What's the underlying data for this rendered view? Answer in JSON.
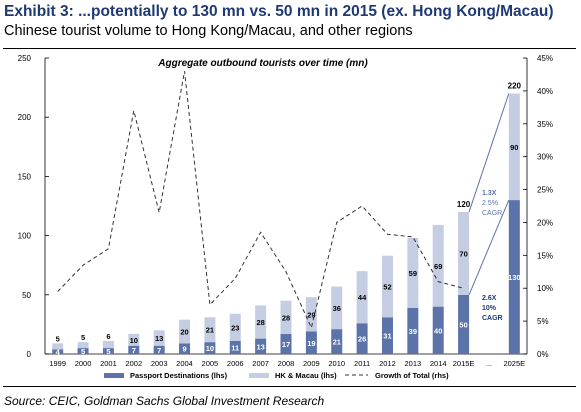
{
  "header": {
    "title": "Exhibit 3: ...potentially to 130 mn vs. 50 mn in 2015 (ex. Hong Kong/Macau)",
    "subtitle": "Chinese tourist volume to Hong Kong/Macau, and other regions"
  },
  "footer": {
    "source": "Source: CEIC, Goldman Sachs Global Investment Research"
  },
  "colors": {
    "passport": "#5b73a8",
    "hk_macau": "#c5cde3",
    "growth_line": "#333333",
    "accent": "#1f3a73",
    "annotation": "#5b73a8"
  },
  "chart_data": {
    "type": "bar",
    "stacked": true,
    "title": "Aggregate outbound tourists over time (mn)",
    "categories": [
      "1999",
      "2000",
      "2001",
      "2002",
      "2003",
      "2004",
      "2005",
      "2006",
      "2007",
      "2008",
      "2009",
      "2010",
      "2011",
      "2012",
      "2013",
      "2014",
      "2015E",
      "...",
      "2025E"
    ],
    "series": [
      {
        "name": "Passport Destinations (lhs)",
        "axis": "left",
        "type": "bar",
        "values": [
          4,
          5,
          5,
          7,
          7,
          9,
          10,
          11,
          13,
          17,
          19,
          21,
          26,
          31,
          39,
          40,
          50,
          null,
          130
        ]
      },
      {
        "name": "HK & Macau (lhs)",
        "axis": "left",
        "type": "bar",
        "values": [
          5,
          5,
          6,
          10,
          13,
          20,
          21,
          23,
          28,
          28,
          29,
          36,
          44,
          52,
          59,
          69,
          70,
          null,
          90
        ]
      },
      {
        "name": "Growth of Total (rhs)",
        "axis": "right",
        "type": "line",
        "style": "dashed",
        "values": [
          9.5,
          13.5,
          16,
          37,
          21.5,
          43,
          7.5,
          11.5,
          18.5,
          12.5,
          4,
          20,
          22.5,
          18.2,
          17.8,
          11,
          10,
          null,
          null
        ]
      }
    ],
    "totals": [
      null,
      null,
      null,
      null,
      null,
      null,
      null,
      null,
      null,
      null,
      null,
      null,
      null,
      null,
      null,
      null,
      120,
      null,
      220
    ],
    "left_axis": {
      "ylim": [
        0,
        250
      ],
      "ticks": [
        0,
        50,
        100,
        150,
        200,
        250
      ]
    },
    "right_axis": {
      "ylim": [
        0,
        45
      ],
      "ticks": [
        "0%",
        "5%",
        "10%",
        "15%",
        "20%",
        "25%",
        "30%",
        "35%",
        "40%",
        "45%"
      ]
    },
    "annotations": [
      {
        "lines": [
          "1.3X",
          "2.5%",
          "CAGR"
        ],
        "series": "HK & Macau (lhs)"
      },
      {
        "lines": [
          "2.6X",
          "10%",
          "CAGR"
        ],
        "series": "Passport Destinations (lhs)"
      }
    ],
    "legend": {
      "placement": "bottom"
    }
  }
}
